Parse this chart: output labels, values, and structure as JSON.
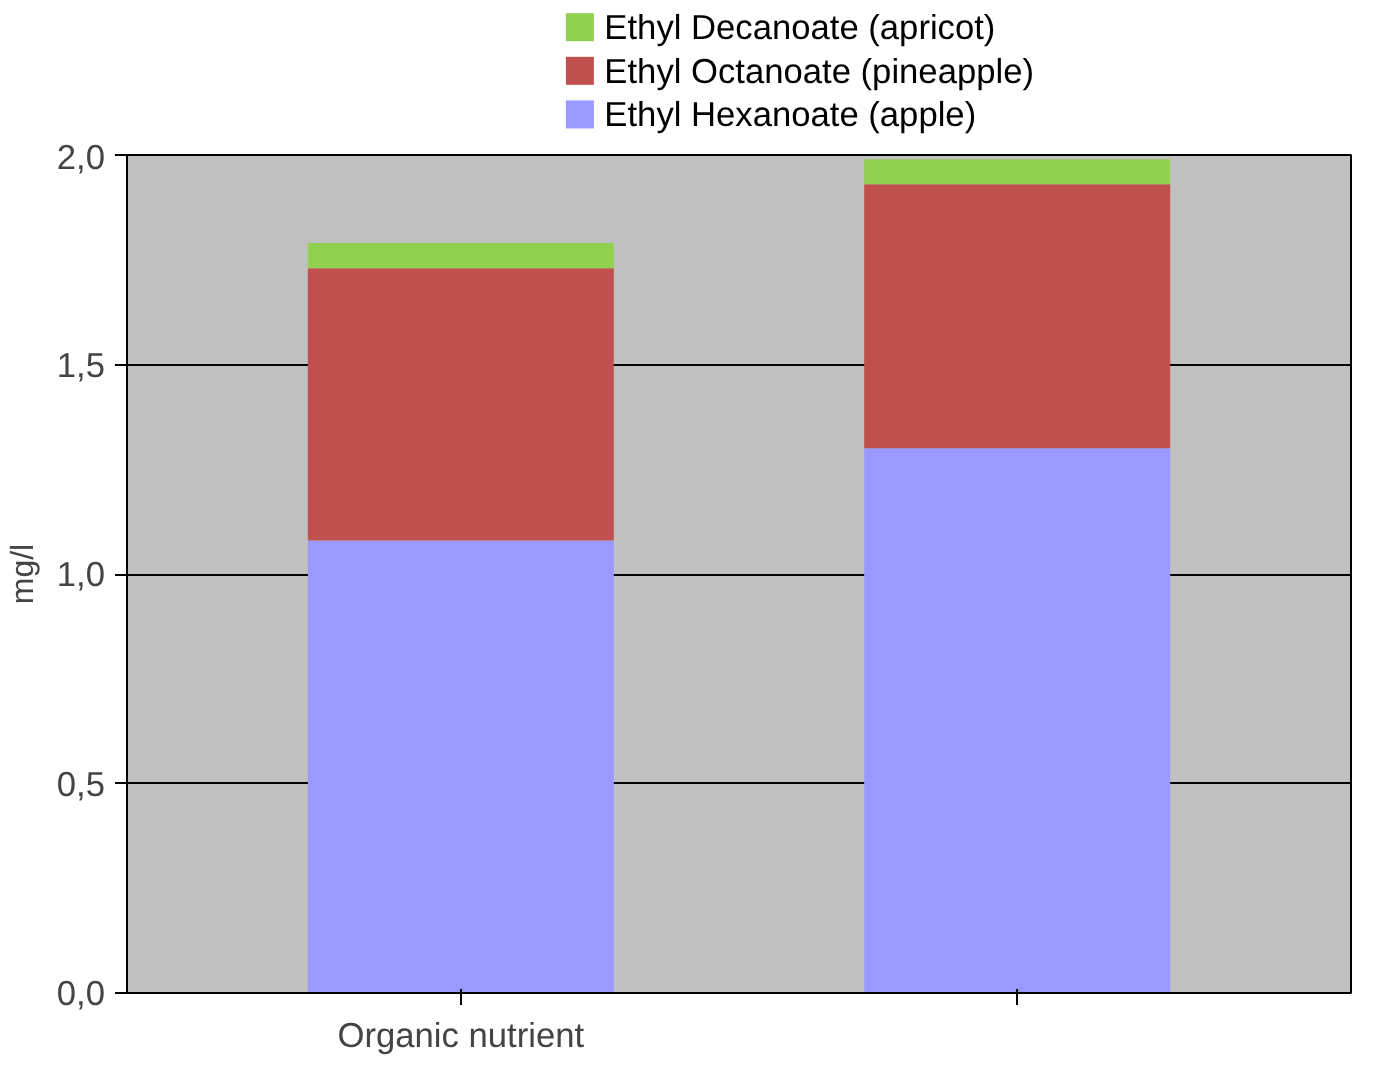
{
  "chart_data": {
    "type": "bar",
    "stacked": true,
    "ylabel": "mg/l",
    "categories": [
      "Organic nutrient",
      null
    ],
    "series": [
      {
        "name": "Ethyl Hexanoate (apple)",
        "color": "#9999ff",
        "values": [
          1.08,
          1.3
        ]
      },
      {
        "name": "Ethyl Octanoate (pineapple)",
        "color": "#c0504d",
        "values": [
          0.65,
          0.63
        ]
      },
      {
        "name": "Ethyl Decanoate (apricot)",
        "color": "#92d050",
        "values": [
          0.06,
          0.06
        ]
      }
    ],
    "ylim": [
      0,
      2
    ],
    "yticks": [
      {
        "value": 0,
        "label": "0,0"
      },
      {
        "value": 0.5,
        "label": "0,5"
      },
      {
        "value": 1,
        "label": "1,0"
      },
      {
        "value": 1.5,
        "label": "1,5"
      },
      {
        "value": 2,
        "label": "2,0"
      }
    ],
    "grid": "y",
    "legend": "top"
  }
}
